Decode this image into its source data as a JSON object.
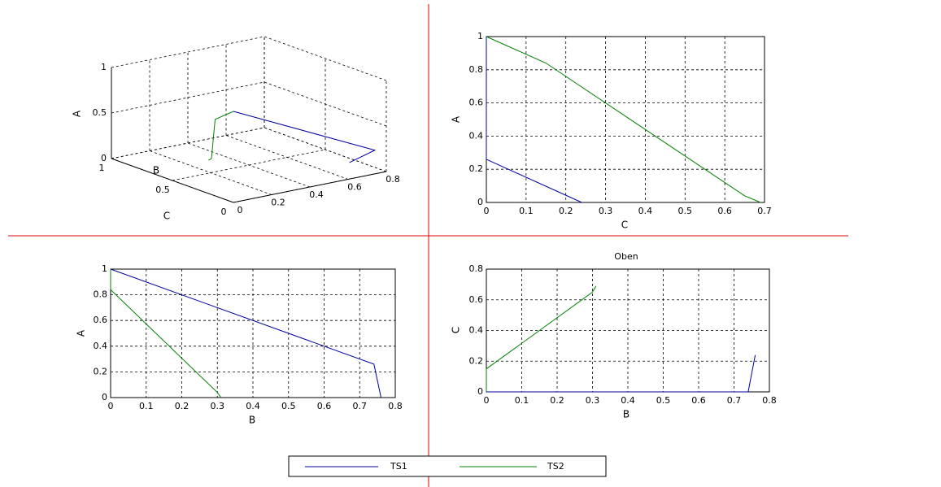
{
  "chart_data": [
    {
      "type": "line3d",
      "xlabel": "B",
      "ylabel": "C",
      "zlabel": "A",
      "xlim": [
        0,
        0.8
      ],
      "xticks": [
        0,
        0.2,
        0.4,
        0.6,
        0.8
      ],
      "ylim": [
        0,
        1
      ],
      "yticks": [
        0,
        0.5,
        1
      ],
      "zlim": [
        0,
        1
      ],
      "zticks": [
        0,
        0.5,
        1
      ],
      "grid": true,
      "series": [
        {
          "name": "TS1",
          "color": "#0000a0",
          "x": [
            0,
            0.74,
            0.76
          ],
          "y": [
            0,
            0,
            0.24
          ],
          "values": [
            1,
            0.26,
            0
          ]
        },
        {
          "name": "TS2",
          "color": "#008000",
          "x": [
            0,
            0,
            0.3,
            0.31
          ],
          "y": [
            0,
            0.15,
            0.65,
            0.69
          ],
          "values": [
            1,
            0.84,
            0.04,
            0
          ]
        }
      ]
    },
    {
      "type": "line",
      "xlabel": "C",
      "ylabel": "A",
      "xlim": [
        0,
        0.7
      ],
      "xticks": [
        0,
        0.1,
        0.2,
        0.3,
        0.4,
        0.5,
        0.6,
        0.7
      ],
      "ylim": [
        0,
        1
      ],
      "yticks": [
        0,
        0.2,
        0.4,
        0.6,
        0.8,
        1
      ],
      "grid": true,
      "series": [
        {
          "color": "#0000a0",
          "x": [
            0,
            0,
            0.24
          ],
          "values": [
            1,
            0.26,
            0
          ]
        },
        {
          "color": "#008000",
          "x": [
            0,
            0.15,
            0.65,
            0.69
          ],
          "values": [
            1,
            0.84,
            0.04,
            0
          ]
        }
      ]
    },
    {
      "type": "line",
      "xlabel": "B",
      "ylabel": "A",
      "xlim": [
        0,
        0.8
      ],
      "xticks": [
        0,
        0.1,
        0.2,
        0.3,
        0.4,
        0.5,
        0.6,
        0.7,
        0.8
      ],
      "ylim": [
        0,
        1
      ],
      "yticks": [
        0,
        0.2,
        0.4,
        0.6,
        0.8,
        1
      ],
      "grid": true,
      "series": [
        {
          "color": "#0000a0",
          "x": [
            0,
            0.74,
            0.76
          ],
          "values": [
            1,
            0.26,
            0
          ]
        },
        {
          "color": "#008000",
          "x": [
            0,
            0,
            0.3,
            0.31
          ],
          "values": [
            1,
            0.84,
            0.04,
            0
          ]
        }
      ]
    },
    {
      "type": "line",
      "title": "Oben",
      "xlabel": "B",
      "ylabel": "C",
      "xlim": [
        0,
        0.8
      ],
      "xticks": [
        0,
        0.1,
        0.2,
        0.3,
        0.4,
        0.5,
        0.6,
        0.7,
        0.8
      ],
      "ylim": [
        0,
        0.8
      ],
      "yticks": [
        0,
        0.2,
        0.4,
        0.6,
        0.8
      ],
      "grid": true,
      "series": [
        {
          "color": "#0000a0",
          "x": [
            0,
            0.74,
            0.76
          ],
          "values": [
            0,
            0,
            0.24
          ]
        },
        {
          "color": "#008000",
          "x": [
            0,
            0,
            0.3,
            0.31
          ],
          "values": [
            0,
            0.15,
            0.65,
            0.69
          ]
        }
      ]
    }
  ]
}
